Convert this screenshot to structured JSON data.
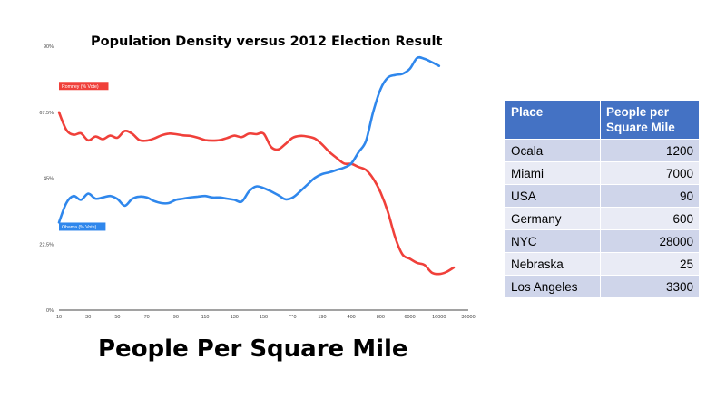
{
  "chart_data": {
    "type": "line",
    "title": "Population Density versus 2012 Election Result",
    "xlabel": "People Per Square Mile",
    "ylabel": "",
    "ylim": [
      0,
      90
    ],
    "y_ticks": [
      "0%",
      "22.5%",
      "45%",
      "67.5%",
      "90%"
    ],
    "x_tick_labels": [
      "10",
      "30",
      "50",
      "70",
      "90",
      "110",
      "130",
      "150",
      "*^0",
      "190",
      "400",
      "800",
      "6000",
      "16000",
      "36000"
    ],
    "grid": false,
    "series": [
      {
        "name": "Romney (% Vote)",
        "color": "#f0403a",
        "values": [
          67.5,
          61.5,
          59.8,
          60.3,
          57.9,
          59.2,
          58.3,
          59.5,
          58.8,
          61.1,
          60.2,
          58.0,
          57.8,
          58.5,
          59.6,
          60.2,
          60.0,
          59.6,
          59.4,
          58.8,
          58.0,
          57.8,
          58.0,
          58.7,
          59.5,
          59.0,
          60.2,
          60.0,
          60.2,
          55.7,
          54.8,
          56.7,
          58.8,
          59.4,
          59.2,
          58.5,
          56.5,
          53.9,
          51.9,
          50.0,
          49.9,
          48.8,
          47.8,
          44.8,
          40.1,
          33.5,
          24.8,
          19.0,
          17.5,
          16.1,
          15.4,
          12.8,
          12.3,
          13.0,
          14.5
        ],
        "x_index": [
          0,
          0.5,
          1,
          1.5,
          2,
          2.5,
          3,
          3.5,
          4,
          4.5,
          5,
          5.5,
          6,
          6.5,
          7,
          7.5,
          8,
          8.5,
          9,
          9.5,
          10,
          10.5,
          11,
          11.5,
          12,
          12.5,
          13,
          13.5,
          14,
          14.5,
          15,
          15.5,
          16,
          16.5,
          17,
          17.5,
          18,
          18.5,
          19,
          19.5,
          20,
          20.5,
          21,
          21.5,
          22,
          22.5,
          23,
          23.5,
          24,
          24.5,
          25,
          25.5,
          26,
          26.5,
          27
        ]
      },
      {
        "name": "Obama (% Vote)",
        "color": "#2f87ec",
        "values": [
          29.9,
          36.5,
          38.9,
          37.6,
          39.7,
          38.0,
          38.4,
          38.9,
          37.9,
          35.6,
          37.9,
          38.7,
          38.4,
          37.2,
          36.5,
          36.5,
          37.6,
          38.0,
          38.4,
          38.7,
          38.9,
          38.4,
          38.4,
          38.0,
          37.6,
          37.0,
          40.5,
          42.2,
          41.6,
          40.5,
          39.2,
          37.8,
          38.4,
          40.5,
          42.8,
          45.1,
          46.4,
          47.0,
          47.8,
          48.6,
          50.0,
          53.9,
          57.7,
          67.7,
          75.4,
          79.3,
          80.2,
          80.6,
          82.3,
          86.0,
          85.7,
          84.6,
          83.3
        ],
        "x_index": [
          0,
          0.5,
          1,
          1.5,
          2,
          2.5,
          3,
          3.5,
          4,
          4.5,
          5,
          5.5,
          6,
          6.5,
          7,
          7.5,
          8,
          8.5,
          9,
          9.5,
          10,
          10.5,
          11,
          11.5,
          12,
          12.5,
          13,
          13.5,
          14,
          14.5,
          15,
          15.5,
          16,
          16.5,
          17,
          17.5,
          18,
          18.5,
          19,
          19.5,
          20,
          20.5,
          21,
          21.5,
          22,
          22.5,
          23,
          23.5,
          24,
          24.5,
          25,
          25.5,
          26
        ]
      }
    ]
  },
  "table": {
    "headers": [
      "Place",
      "People per Square Mile"
    ],
    "rows": [
      [
        "Ocala",
        "1200"
      ],
      [
        "Miami",
        "7000"
      ],
      [
        "USA",
        "90"
      ],
      [
        "Germany",
        "600"
      ],
      [
        "NYC",
        "28000"
      ],
      [
        "Nebraska",
        "25"
      ],
      [
        "Los Angeles",
        "3300"
      ]
    ]
  }
}
